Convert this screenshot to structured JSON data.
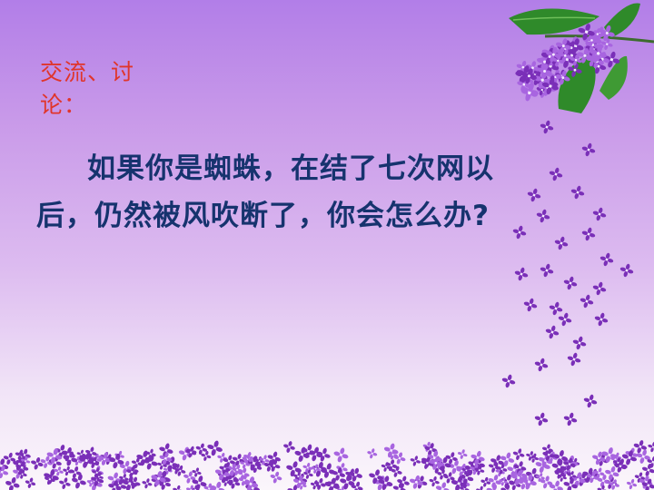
{
  "slide": {
    "heading": "交流、讨论：",
    "question": "如果你是蜘蛛，在结了七次网以后，仍然被风吹断了，你会怎么办?"
  },
  "decor": {
    "branch_icon": "lilac-branch-icon",
    "petal_icon": "falling-petal-icon",
    "ground_icon": "flower-carpet-icon",
    "colors": {
      "petal": "#7a2fb8",
      "petal_light": "#a865e0",
      "leaf": "#2f8a2a",
      "heading": "#e0352b",
      "body_text": "#16336e"
    }
  }
}
